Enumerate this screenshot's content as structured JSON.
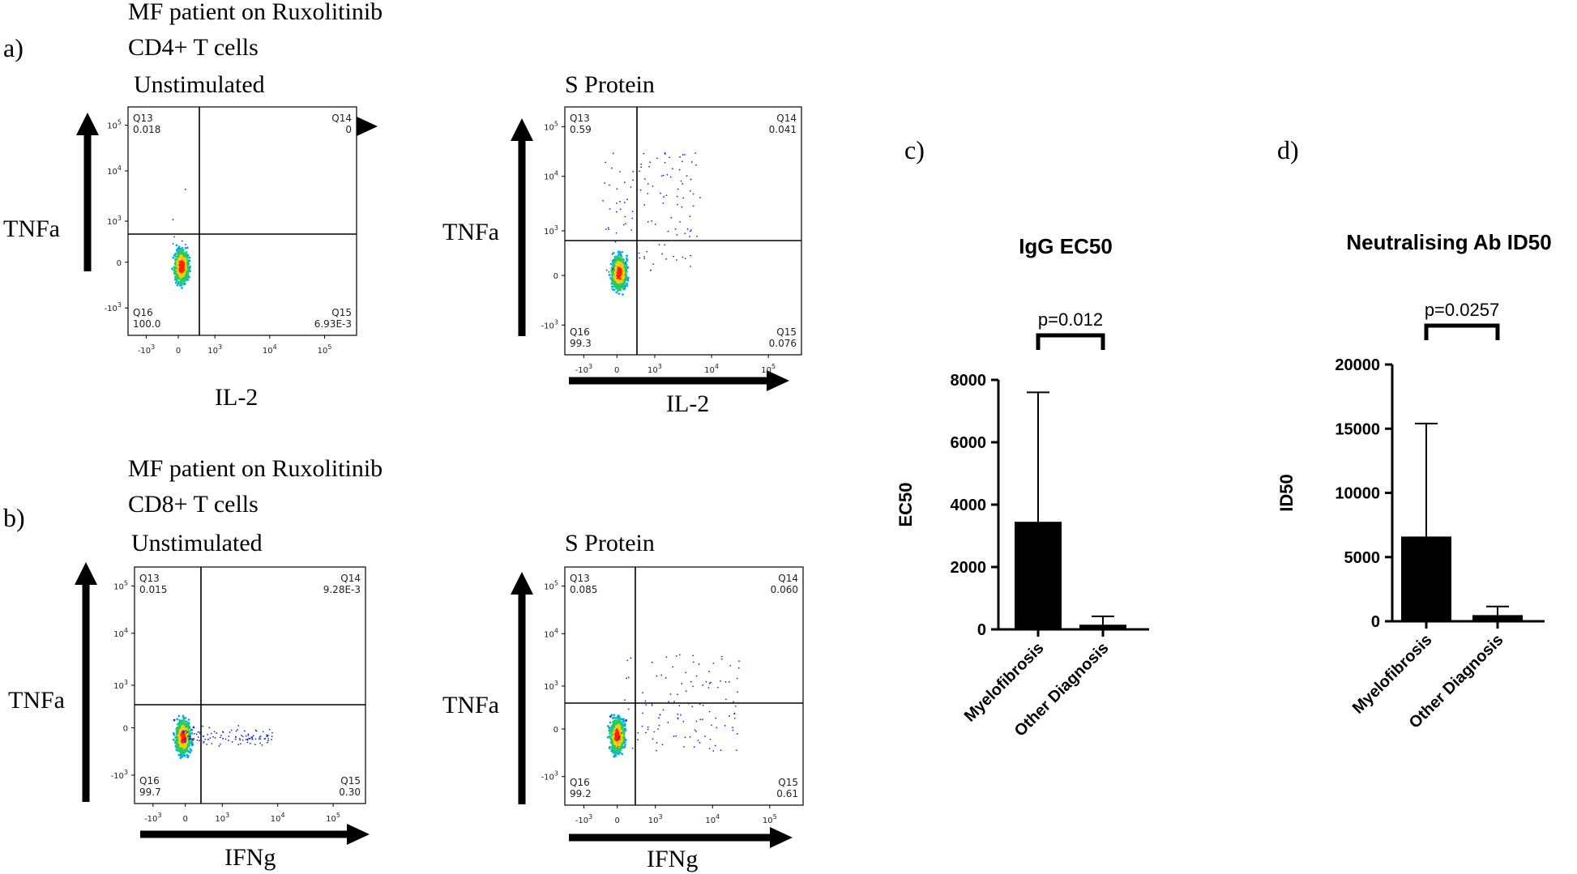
{
  "panels": {
    "a": {
      "letter": "a)",
      "line1": "MF patient on Ruxolitinib",
      "line2": "CD4+ T cells"
    },
    "b": {
      "letter": "b)",
      "line1": "MF patient on Ruxolitinib",
      "line2": "CD8+ T cells"
    },
    "c": {
      "letter": "c)"
    },
    "d": {
      "letter": "d)"
    }
  },
  "flow_plots": [
    {
      "id": "a1",
      "title": "Unstimulated",
      "x_label": "IL-2",
      "y_label": "TNFa",
      "quadrants": {
        "q13": {
          "name": "Q13",
          "value": "0.018"
        },
        "q14": {
          "name": "Q14",
          "value": "0"
        },
        "q16": {
          "name": "Q16",
          "value": "100.0"
        },
        "q15": {
          "name": "Q15",
          "value": "6.93E-3"
        }
      },
      "spread": "none"
    },
    {
      "id": "a2",
      "title": "S Protein",
      "x_label": "IL-2",
      "y_label": "TNFa",
      "quadrants": {
        "q13": {
          "name": "Q13",
          "value": "0.59"
        },
        "q14": {
          "name": "Q14",
          "value": "0.041"
        },
        "q16": {
          "name": "Q16",
          "value": "99.3"
        },
        "q15": {
          "name": "Q15",
          "value": "0.076"
        }
      },
      "spread": "up"
    },
    {
      "id": "b1",
      "title": "Unstimulated",
      "x_label": "IFNg",
      "y_label": "TNFa",
      "quadrants": {
        "q13": {
          "name": "Q13",
          "value": "0.015"
        },
        "q14": {
          "name": "Q14",
          "value": "9.28E-3"
        },
        "q16": {
          "name": "Q16",
          "value": "99.7"
        },
        "q15": {
          "name": "Q15",
          "value": "0.30"
        }
      },
      "spread": "right"
    },
    {
      "id": "b2",
      "title": "S Protein",
      "x_label": "IFNg",
      "y_label": "TNFa",
      "quadrants": {
        "q13": {
          "name": "Q13",
          "value": "0.085"
        },
        "q14": {
          "name": "Q14",
          "value": "0.060"
        },
        "q16": {
          "name": "Q16",
          "value": "99.2"
        },
        "q15": {
          "name": "Q15",
          "value": "0.61"
        }
      },
      "spread": "both"
    }
  ],
  "flow_ticks": {
    "y": [
      {
        "label": "10",
        "sup": "5"
      },
      {
        "label": "10",
        "sup": "4"
      },
      {
        "label": "10",
        "sup": "3"
      },
      {
        "label": "0",
        "sup": ""
      },
      {
        "label": "-10",
        "sup": "3"
      }
    ],
    "x": [
      {
        "label": "-10",
        "sup": "3"
      },
      {
        "label": "0",
        "sup": ""
      },
      {
        "label": "10",
        "sup": "3"
      },
      {
        "label": "10",
        "sup": "4"
      },
      {
        "label": "10",
        "sup": "5"
      }
    ]
  },
  "chart_data": [
    {
      "type": "bar",
      "title": "IgG EC50",
      "ylabel": "EC50",
      "xlabel": "",
      "categories": [
        "Myelofibrosis",
        "Other Diagnosis"
      ],
      "values": [
        3450,
        150
      ],
      "error_upper": [
        7600,
        420
      ],
      "ylim": [
        0,
        8000
      ],
      "yticks": [
        "0",
        "2000",
        "4000",
        "6000",
        "8000"
      ],
      "annotation": "p=0.012"
    },
    {
      "type": "bar",
      "title": "Neutralising Ab ID50",
      "ylabel": "ID50",
      "xlabel": "",
      "categories": [
        "Myelofibrosis",
        "Other Diagnosis"
      ],
      "values": [
        6600,
        480
      ],
      "error_upper": [
        15400,
        1150
      ],
      "ylim": [
        0,
        20000
      ],
      "yticks": [
        "0",
        "5000",
        "10000",
        "15000",
        "20000"
      ],
      "annotation": "p=0.0257"
    }
  ]
}
